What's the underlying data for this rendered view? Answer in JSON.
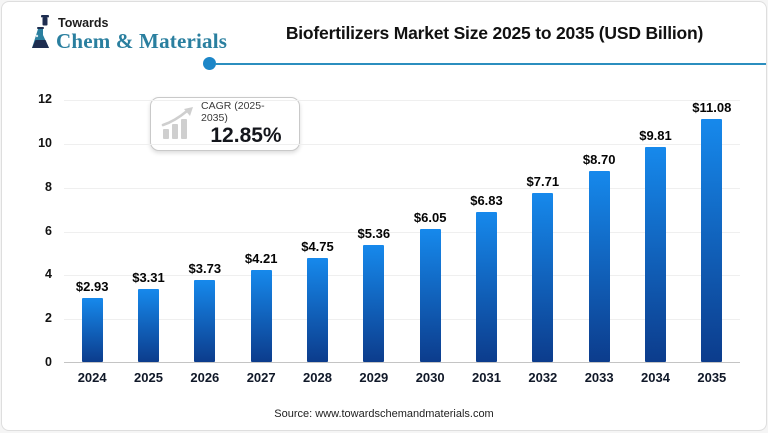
{
  "header": {
    "brand": {
      "top": "Towards",
      "name": "Chem & Materials"
    },
    "title": "Biofertilizers Market Size 2025 to 2035 (USD Billion)"
  },
  "cagr": {
    "label": "CAGR (2025-2035)",
    "value": "12.85%"
  },
  "chart_data": {
    "type": "bar",
    "title": "Biofertilizers Market Size 2025 to 2035 (USD Billion)",
    "unit": "USD Billion",
    "categories": [
      "2024",
      "2025",
      "2026",
      "2027",
      "2028",
      "2029",
      "2030",
      "2031",
      "2032",
      "2033",
      "2034",
      "2035"
    ],
    "values": [
      2.93,
      3.31,
      3.73,
      4.21,
      4.75,
      5.36,
      6.05,
      6.83,
      7.71,
      8.7,
      9.81,
      11.08
    ],
    "value_labels": [
      "$2.93",
      "$3.31",
      "$3.73",
      "$4.21",
      "$4.75",
      "$5.36",
      "$6.05",
      "$6.83",
      "$7.71",
      "$8.70",
      "$9.81",
      "$11.08"
    ],
    "ylim": [
      0,
      12
    ],
    "yticks": [
      0,
      2,
      4,
      6,
      8,
      10,
      12
    ],
    "grid": true,
    "legend": "none",
    "bar_gradient": {
      "top": "#1689ec",
      "bottom": "#0c3c8c"
    }
  },
  "footer": {
    "source": "Source: www.towardschemandmaterials.com"
  },
  "colors": {
    "accent_teal": "#2a7f9f",
    "divider_line": "#2b8ebf",
    "divider_dot": "#1c86c8",
    "cagr_icon_gray": "#cfcfcf",
    "logo_navy": "#1e2d50"
  }
}
